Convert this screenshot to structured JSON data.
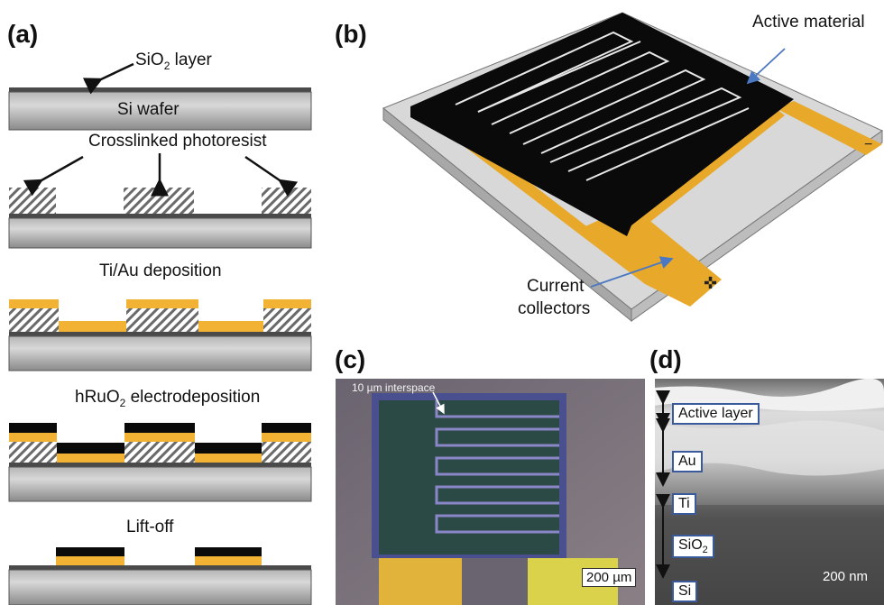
{
  "panel_a": {
    "label": "(a)",
    "sio2": "SiO",
    "sio2_sub": "2",
    "sio2_suffix": " layer",
    "si_wafer": "Si wafer",
    "photoresist": "Crosslinked photoresist",
    "tiau": "Ti/Au deposition",
    "hruo2_prefix": "hRuO",
    "hruo2_sub": "2",
    "hruo2_suffix": " electrodeposition",
    "liftoff": "Lift-off",
    "colors": {
      "gold": "#f2b233",
      "black": "#0a0a0a",
      "wafer": "#8c8c8c"
    }
  },
  "panel_b": {
    "label": "(b)",
    "active_material": "Active material",
    "current": "Current",
    "collectors": "collectors"
  },
  "panel_c": {
    "label": "(c)",
    "interspace": "10 µm interspace",
    "scale": "200 µm"
  },
  "panel_d": {
    "label": "(d)",
    "active_layer": "Active layer",
    "au": "Au",
    "ti": "Ti",
    "sio2": "SiO",
    "sio2_sub": "2",
    "si": "Si",
    "scale": "200 nm"
  }
}
